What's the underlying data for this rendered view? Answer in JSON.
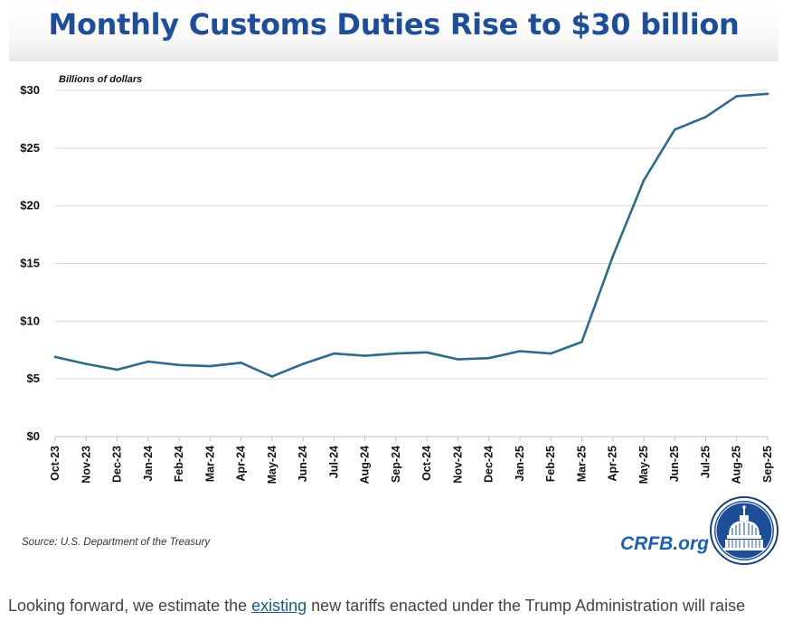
{
  "chart_data": {
    "type": "line",
    "title": "Monthly Customs Duties Rise to $30 billion",
    "ylabel": "Billions of dollars",
    "xlabel": "",
    "ylim": [
      0,
      30
    ],
    "y_ticks": [
      "$0",
      "$5",
      "$10",
      "$15",
      "$20",
      "$25",
      "$30"
    ],
    "y_tick_values": [
      0,
      5,
      10,
      15,
      20,
      25,
      30
    ],
    "categories": [
      "Oct-23",
      "Nov-23",
      "Dec-23",
      "Jan-24",
      "Feb-24",
      "Mar-24",
      "Apr-24",
      "May-24",
      "Jun-24",
      "Jul-24",
      "Aug-24",
      "Sep-24",
      "Oct-24",
      "Nov-24",
      "Dec-24",
      "Jan-25",
      "Feb-25",
      "Mar-25",
      "Apr-25",
      "May-25",
      "Jun-25",
      "Jul-25",
      "Aug-25",
      "Sep-25"
    ],
    "series": [
      {
        "values": [
          6.9,
          6.3,
          5.8,
          6.5,
          6.2,
          6.1,
          6.4,
          5.2,
          6.3,
          7.2,
          7.0,
          7.2,
          7.3,
          6.7,
          6.8,
          7.4,
          7.2,
          8.2,
          15.6,
          22.2,
          26.6,
          27.7,
          29.5,
          29.7
        ],
        "color": "#2e6a8a"
      }
    ],
    "grid": true,
    "legend": "none"
  },
  "source": "Source: U.S. Department of the Treasury",
  "brand": "CRFB.org",
  "footer": {
    "before": "Looking forward, we estimate the ",
    "link": "existing",
    "after": " new tariffs enacted under the Trump Administration will raise"
  },
  "colors": {
    "title": "#1f4e99",
    "line": "#2e6a8a",
    "brand": "#1f5fb0",
    "seal": "#1f4e99"
  }
}
